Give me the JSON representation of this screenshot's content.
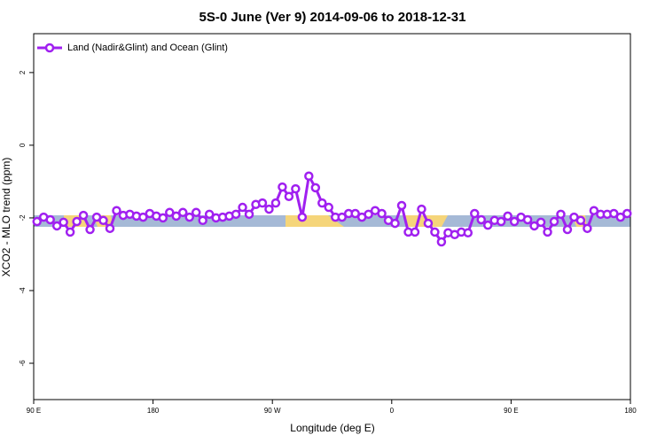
{
  "chart_data": {
    "type": "line",
    "title": "5S-0 June (Ver 9)   2014-09-06 to 2018-12-31",
    "xlabel": "Longitude (deg E)",
    "ylabel": "XCO2 - MLO trend (ppm)",
    "legend": "top-left",
    "xlim": [
      90,
      540
    ],
    "ylim": [
      -7,
      3.07
    ],
    "xticks": [
      {
        "value": 90,
        "label": "90 E"
      },
      180,
      {
        "value": 270,
        "label": "90 W"
      },
      {
        "value": 360,
        "label": "0"
      },
      {
        "value": 450,
        "label": "90 E"
      },
      {
        "value": 540,
        "label": "180"
      }
    ],
    "yticks": [
      2,
      0,
      -2,
      -4,
      -6
    ],
    "x": [
      92.5,
      97.5,
      102.5,
      107.5,
      112.5,
      117.5,
      122.5,
      127.5,
      132.5,
      137.5,
      142.5,
      147.5,
      152.5,
      157.5,
      162.5,
      167.5,
      172.5,
      177.5,
      182.5,
      187.5,
      192.5,
      197.5,
      202.5,
      207.5,
      212.5,
      217.5,
      222.5,
      227.5,
      232.5,
      237.5,
      242.5,
      247.5,
      252.5,
      257.5,
      262.5,
      267.5,
      272.5,
      277.5,
      282.5,
      287.5,
      292.5,
      297.5,
      302.5,
      307.5,
      312.5,
      317.5,
      322.5,
      327.5,
      332.5,
      337.5,
      342.5,
      347.5,
      352.5,
      357.5,
      362.5,
      367.5,
      372.5,
      377.5,
      382.5,
      387.5,
      392.5,
      397.5,
      402.5,
      407.5,
      412.5,
      417.5,
      422.5,
      427.5,
      432.5,
      437.5,
      442.5,
      447.5,
      452.5,
      457.5,
      462.5,
      467.5,
      472.5,
      477.5,
      482.5,
      487.5,
      492.5,
      497.5,
      502.5,
      507.5,
      512.5,
      517.5,
      522.5,
      527.5,
      532.5,
      537.5
    ],
    "series": [
      {
        "name": "Land (Nadir&Glint) and Ocean (Glint)",
        "color": "#a020f0",
        "values": [
          -2.1,
          -1.98,
          -2.05,
          -2.22,
          -2.12,
          -2.39,
          -2.1,
          -1.93,
          -2.32,
          -1.98,
          -2.07,
          -2.29,
          -1.8,
          -1.93,
          -1.9,
          -1.95,
          -1.98,
          -1.88,
          -1.95,
          -2.0,
          -1.85,
          -1.95,
          -1.85,
          -1.98,
          -1.85,
          -2.07,
          -1.9,
          -2.0,
          -1.98,
          -1.95,
          -1.9,
          -1.71,
          -1.9,
          -1.63,
          -1.59,
          -1.76,
          -1.59,
          -1.15,
          -1.41,
          -1.2,
          -1.98,
          -0.85,
          -1.17,
          -1.59,
          -1.71,
          -1.98,
          -1.98,
          -1.88,
          -1.88,
          -1.98,
          -1.9,
          -1.8,
          -1.88,
          -2.07,
          -2.15,
          -1.66,
          -2.39,
          -2.39,
          -1.76,
          -2.15,
          -2.39,
          -2.66,
          -2.41,
          -2.46,
          -2.39,
          -2.41,
          -1.88,
          -2.05,
          -2.2,
          -2.07,
          -2.1,
          -1.95,
          -2.1,
          -1.98,
          -2.05,
          -2.22,
          -2.12,
          -2.39,
          -2.1,
          -1.9,
          -2.32,
          -1.98,
          -2.07,
          -2.29,
          -1.8,
          -1.9,
          -1.9,
          -1.88,
          -1.98,
          -1.88
        ]
      }
    ]
  }
}
